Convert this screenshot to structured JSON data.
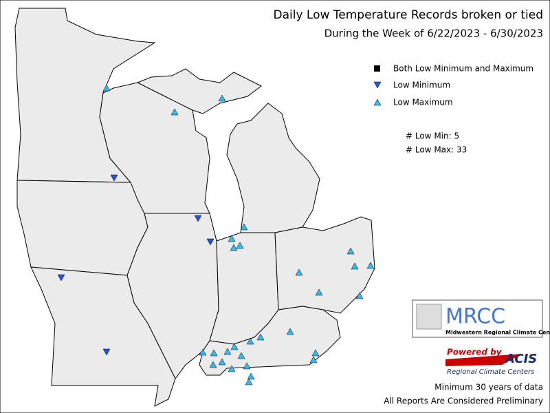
{
  "header": {
    "title": "Daily Low Temperature Records broken or tied",
    "subtitle": "During the Week of 6/22/2023 - 6/30/2023"
  },
  "legend": {
    "items": [
      "Both Low Minimum and Maximum",
      "Low Minimum",
      "Low Maximum"
    ]
  },
  "counts": [
    "# Low Min: 5",
    "# Low Max: 33"
  ],
  "logos": {
    "mrcc": "MRCC",
    "mrcc_name": "Midwestern Regional Climate Center",
    "powered_by": "Powered by",
    "acis": "ACIS",
    "acis_name": "Regional Climate Centers"
  },
  "footer": [
    "Minimum 30 years of data",
    "All Reports Are Considered Preliminary"
  ]
}
